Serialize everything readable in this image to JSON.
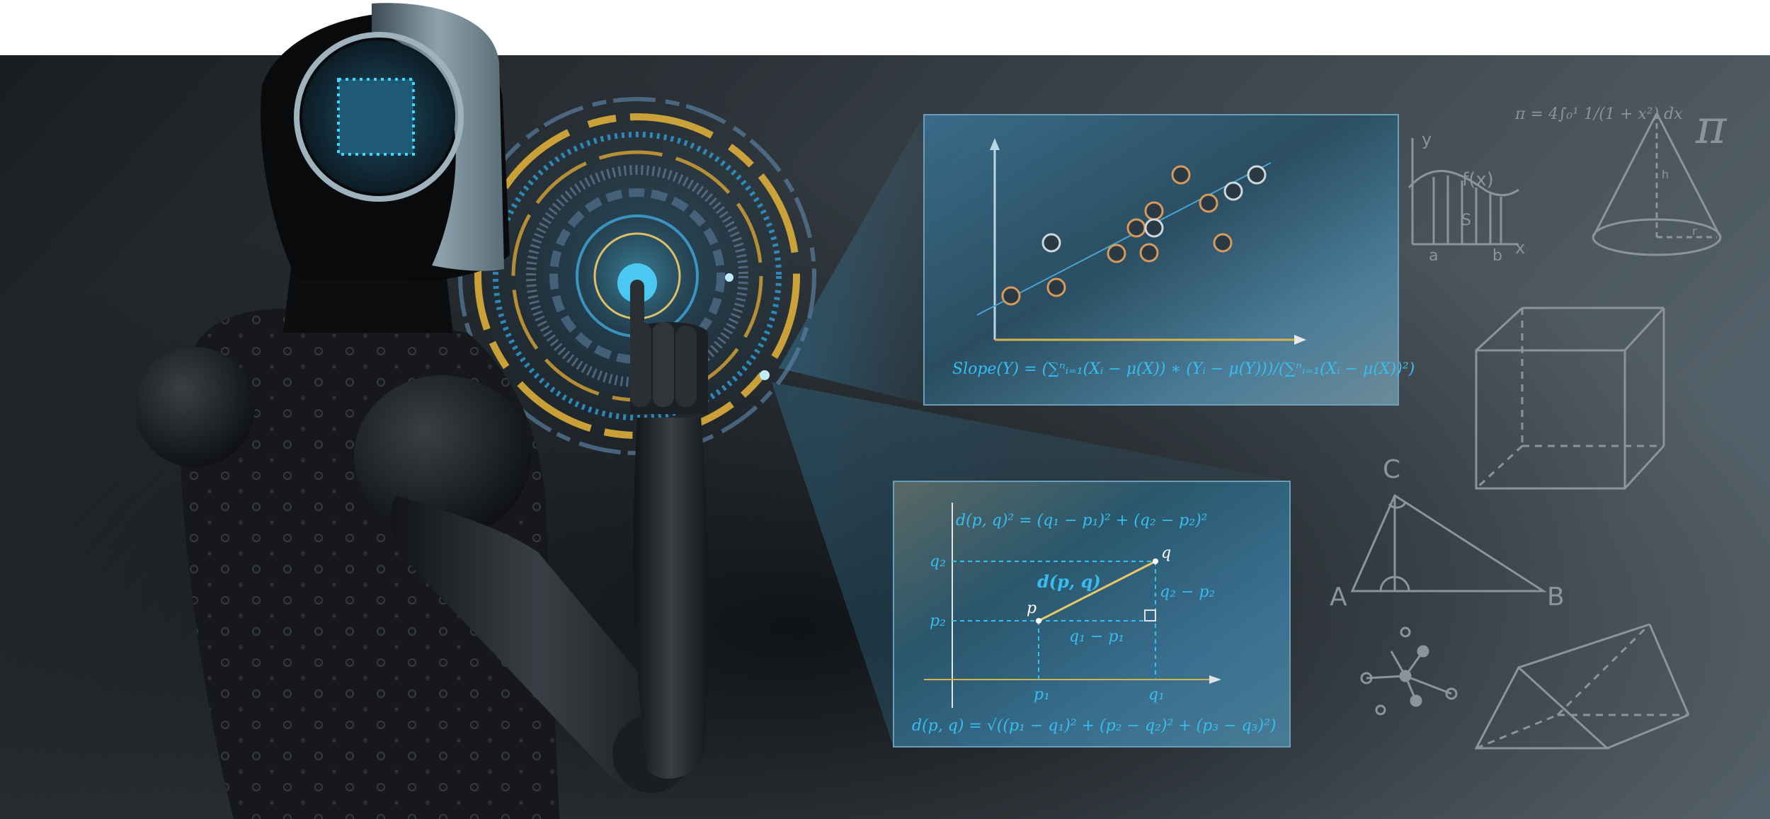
{
  "scene": {
    "subject": "robot-touching-hologram",
    "colors": {
      "background_dark": "#16191c",
      "background_light": "#4d5961",
      "panel_fill": "#3f6f8c",
      "formula_cyan": "#2fb8e8",
      "hologram_gold": "#e8b53a",
      "sketch_gray": "#8d9499"
    }
  },
  "regression_panel": {
    "slope_formula": "Slope(Y) = (∑ⁿᵢ₌₁(Xᵢ − μ(X)) ∗ (Yᵢ − μ(Y)))/(∑ⁿᵢ₌₁(Xᵢ − μ(X))²)"
  },
  "distance_panel": {
    "squared_formula": "d(p, q)² = (q₁ − p₁)² + (q₂ − p₂)²",
    "label_q2_axis": "q₂",
    "label_p2_axis": "p₂",
    "label_p1_axis": "p₁",
    "label_q1_axis": "q₁",
    "label_p": "p",
    "label_q": "q",
    "label_dpq": "d(p, q)",
    "label_q1_minus_p1": "q₁ − p₁",
    "label_q2_minus_p2": "q₂ − p₂",
    "formula_3d": "d(p, q) = √((p₁ − q₁)² + (p₂ − q₂)² + (p₃ − q₃)²)"
  },
  "sketches": {
    "pi_integral": "π = 4∫₀¹ 1/(1 + x²) dx",
    "pi_symbol": "π",
    "graph_y": "y",
    "graph_x": "x",
    "graph_fx": "f(x)",
    "graph_s": "S",
    "graph_a": "a",
    "graph_b": "b",
    "cone_h": "h",
    "cone_r": "r",
    "triangle_a": "A",
    "triangle_b": "B",
    "triangle_c": "C"
  }
}
